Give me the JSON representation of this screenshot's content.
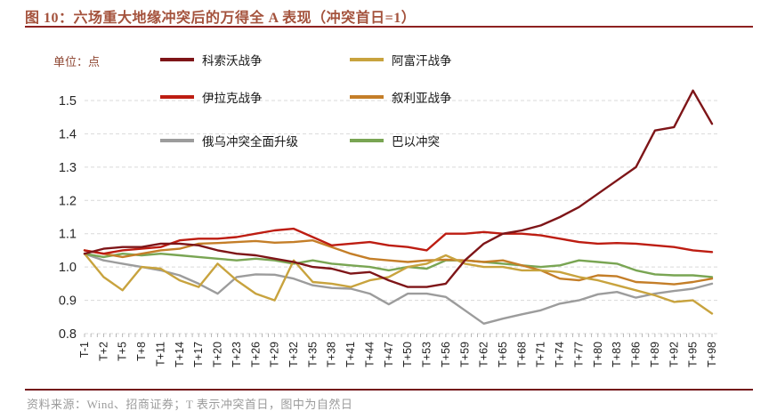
{
  "header": {
    "title": "图 10：六场重大地缘冲突后的万得全 A 表现（冲突首日=1）"
  },
  "unit_label": "单位：点",
  "footer": {
    "source": "资料来源：Wind、招商证券；T 表示冲突首日，图中为自然日"
  },
  "colors": {
    "title": "#a4523c",
    "rule": "#8d2120",
    "grid": "#d9d9d9",
    "axis_text": "#262626",
    "source_text": "#9b9b9b"
  },
  "chart_data": {
    "type": "line",
    "title": "六场重大地缘冲突后的万得全A表现（冲突首日=1）",
    "xlabel": "",
    "ylabel": "点",
    "ylim": [
      0.8,
      1.5
    ],
    "yticks": [
      0.8,
      0.9,
      1.0,
      1.1,
      1.2,
      1.3,
      1.4,
      1.5
    ],
    "grid": "horizontal-dashed",
    "legend_position": "top",
    "categories": [
      "T-1",
      "T+2",
      "T+5",
      "T+8",
      "T+11",
      "T+14",
      "T+17",
      "T+20",
      "T+23",
      "T+26",
      "T+29",
      "T+32",
      "T+35",
      "T+38",
      "T+41",
      "T+44",
      "T+47",
      "T+50",
      "T+53",
      "T+56",
      "T+59",
      "T+62",
      "T+65",
      "T+68",
      "T+71",
      "T+74",
      "T+77",
      "T+80",
      "T+83",
      "T+86",
      "T+89",
      "T+92",
      "T+95",
      "T+98"
    ],
    "series": [
      {
        "name": "科索沃战争",
        "slug": "kosovo-war",
        "color": "#7e1518",
        "values": [
          1.04,
          1.055,
          1.06,
          1.06,
          1.07,
          1.07,
          1.065,
          1.05,
          1.04,
          1.035,
          1.025,
          1.015,
          1.0,
          0.995,
          0.98,
          0.985,
          0.96,
          0.94,
          0.94,
          0.95,
          1.02,
          1.07,
          1.1,
          1.11,
          1.125,
          1.15,
          1.18,
          1.22,
          1.26,
          1.3,
          1.41,
          1.42,
          1.53,
          1.43
        ]
      },
      {
        "name": "阿富汗战争",
        "slug": "afghanistan-war",
        "color": "#c8a33e",
        "values": [
          1.04,
          0.97,
          0.93,
          1.0,
          0.995,
          0.96,
          0.94,
          1.01,
          0.96,
          0.92,
          0.9,
          1.02,
          0.955,
          0.95,
          0.94,
          0.96,
          0.97,
          1.0,
          1.01,
          1.035,
          1.01,
          1.0,
          1.0,
          0.99,
          0.99,
          0.985,
          0.97,
          0.96,
          0.945,
          0.93,
          0.915,
          0.895,
          0.9,
          0.86
        ]
      },
      {
        "name": "伊拉克战争",
        "slug": "iraq-war",
        "color": "#bd1d12",
        "values": [
          1.05,
          1.04,
          1.05,
          1.055,
          1.06,
          1.08,
          1.085,
          1.085,
          1.09,
          1.1,
          1.11,
          1.115,
          1.09,
          1.065,
          1.07,
          1.075,
          1.065,
          1.06,
          1.05,
          1.1,
          1.1,
          1.105,
          1.1,
          1.1,
          1.095,
          1.085,
          1.075,
          1.07,
          1.072,
          1.07,
          1.065,
          1.06,
          1.05,
          1.045
        ]
      },
      {
        "name": "叙利亚战争",
        "slug": "syria-war",
        "color": "#c47e28",
        "values": [
          1.05,
          1.04,
          1.03,
          1.04,
          1.05,
          1.055,
          1.07,
          1.072,
          1.075,
          1.078,
          1.073,
          1.075,
          1.08,
          1.06,
          1.04,
          1.025,
          1.02,
          1.015,
          1.02,
          1.022,
          1.02,
          1.015,
          1.02,
          1.005,
          0.99,
          0.965,
          0.96,
          0.975,
          0.972,
          0.955,
          0.952,
          0.948,
          0.955,
          0.965
        ]
      },
      {
        "name": "俄乌冲突全面升级",
        "slug": "russia-ukraine-escalation",
        "color": "#9c9c9c",
        "values": [
          1.04,
          1.02,
          1.01,
          1.0,
          0.99,
          0.975,
          0.95,
          0.92,
          0.97,
          0.978,
          0.977,
          0.965,
          0.945,
          0.937,
          0.935,
          0.92,
          0.888,
          0.92,
          0.92,
          0.91,
          0.87,
          0.83,
          0.845,
          0.858,
          0.87,
          0.89,
          0.9,
          0.918,
          0.925,
          0.908,
          0.92,
          0.928,
          0.935,
          0.95
        ]
      },
      {
        "name": "巴以冲突",
        "slug": "israel-palestine-conflict",
        "color": "#79a553",
        "values": [
          1.04,
          1.03,
          1.04,
          1.035,
          1.04,
          1.035,
          1.03,
          1.025,
          1.02,
          1.025,
          1.02,
          1.01,
          1.02,
          1.01,
          1.005,
          1.0,
          0.99,
          1.0,
          0.995,
          1.02,
          1.02,
          1.015,
          1.01,
          1.005,
          1.0,
          1.005,
          1.02,
          1.015,
          1.01,
          0.99,
          0.978,
          0.975,
          0.975,
          0.97
        ]
      }
    ]
  }
}
